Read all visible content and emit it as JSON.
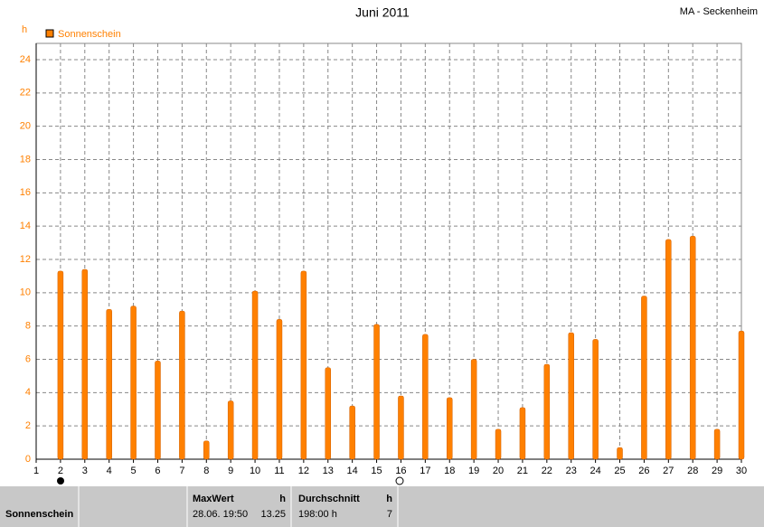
{
  "chart_data": {
    "type": "bar",
    "title": "Juni 2011",
    "subtitle": "MA - Seckenheim",
    "y_label": "h",
    "x": [
      1,
      2,
      3,
      4,
      5,
      6,
      7,
      8,
      9,
      10,
      11,
      12,
      13,
      14,
      15,
      16,
      17,
      18,
      19,
      20,
      21,
      22,
      23,
      24,
      25,
      26,
      27,
      28,
      29,
      30
    ],
    "xlim": [
      1,
      30
    ],
    "xticks": [
      1,
      2,
      3,
      4,
      5,
      6,
      7,
      8,
      9,
      10,
      11,
      12,
      13,
      14,
      15,
      16,
      17,
      18,
      19,
      20,
      21,
      22,
      23,
      24,
      25,
      26,
      27,
      28,
      29,
      30
    ],
    "series": [
      {
        "name": "Sonnenschein",
        "color": "#ff8000",
        "values": [
          null,
          11.3,
          11.4,
          9.0,
          9.2,
          5.9,
          8.9,
          1.1,
          3.5,
          10.1,
          8.4,
          11.3,
          5.5,
          3.2,
          8.1,
          3.8,
          7.5,
          3.7,
          6.0,
          1.8,
          3.1,
          5.7,
          7.6,
          7.2,
          0.7,
          9.8,
          13.2,
          13.4,
          1.8,
          7.7
        ]
      }
    ],
    "ylim": [
      0,
      24
    ],
    "yticks": [
      0,
      2,
      4,
      6,
      8,
      10,
      12,
      14,
      16,
      18,
      20,
      22,
      24
    ],
    "grid": true
  },
  "stats": {
    "label": "Sonnenschein",
    "max_header": "MaxWert",
    "max_unit": "h",
    "max_time": "28.06.  19:50",
    "max_value": "13.25",
    "avg_header": "Durchschnitt",
    "avg_unit": "h",
    "avg_value": "198:00 h",
    "avg_count": "7"
  }
}
